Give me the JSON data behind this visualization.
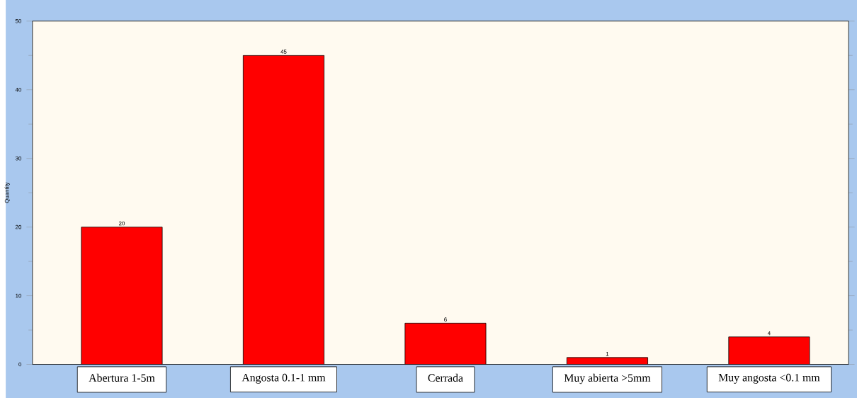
{
  "chart_data": {
    "type": "bar",
    "ylabel": "Quantity",
    "categories": [
      "Abertura 1-5m",
      "Angosta 0.1-1 mm",
      "Cerrada",
      "Muy abierta >5mm",
      "Muy angosta <0.1 mm"
    ],
    "values": [
      20,
      45,
      6,
      1,
      4
    ],
    "color": "#ff0000",
    "ylim": [
      0,
      50
    ],
    "yticks": [
      0,
      10,
      20,
      30,
      40,
      50
    ],
    "data_labels": true,
    "grid": false
  }
}
